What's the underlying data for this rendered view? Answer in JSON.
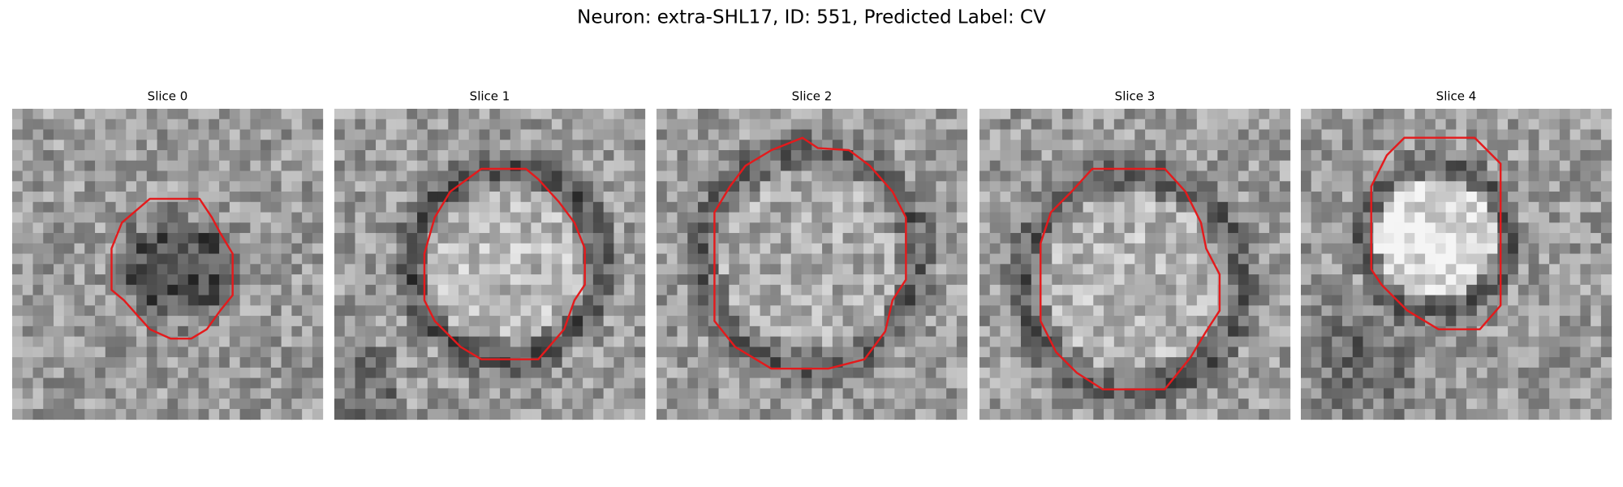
{
  "title": "Neuron: extra-SHL17, ID: 551, Predicted Label: CV",
  "panels": [
    {
      "title": "Slice 0"
    },
    {
      "title": "Slice 1"
    },
    {
      "title": "Slice 2"
    },
    {
      "title": "Slice 3"
    },
    {
      "title": "Slice 4"
    }
  ]
}
